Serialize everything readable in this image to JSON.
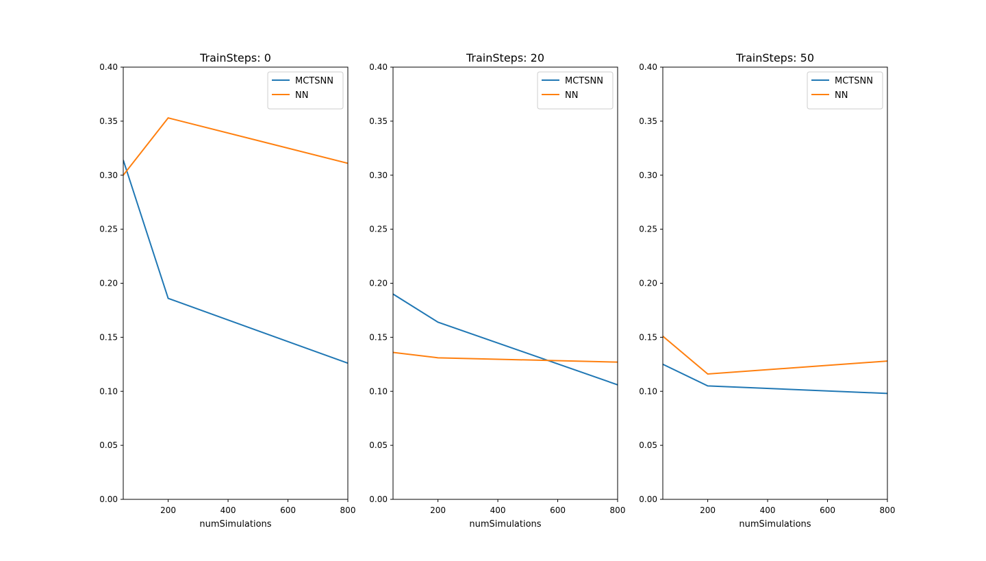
{
  "colors": {
    "MCTSNN": "#1f77b4",
    "NN": "#ff7f0e"
  },
  "chart_data": [
    {
      "type": "line",
      "title": "TrainSteps: 0",
      "xlabel": "numSimulations",
      "ylabel": "",
      "x": [
        50,
        200,
        800
      ],
      "xlim": [
        50,
        800
      ],
      "ylim": [
        0,
        0.4
      ],
      "xticks": [
        "200",
        "400",
        "600",
        "800"
      ],
      "yticks": [
        "0.00",
        "0.05",
        "0.10",
        "0.15",
        "0.20",
        "0.25",
        "0.30",
        "0.35",
        "0.40"
      ],
      "legend_position": "top-right",
      "grid": false,
      "series": [
        {
          "name": "MCTSNN",
          "values": [
            0.314,
            0.186,
            0.126
          ]
        },
        {
          "name": "NN",
          "values": [
            0.3,
            0.353,
            0.311
          ]
        }
      ]
    },
    {
      "type": "line",
      "title": "TrainSteps: 20",
      "xlabel": "numSimulations",
      "ylabel": "",
      "x": [
        50,
        200,
        800
      ],
      "xlim": [
        50,
        800
      ],
      "ylim": [
        0,
        0.4
      ],
      "xticks": [
        "200",
        "400",
        "600",
        "800"
      ],
      "yticks": [
        "0.00",
        "0.05",
        "0.10",
        "0.15",
        "0.20",
        "0.25",
        "0.30",
        "0.35",
        "0.40"
      ],
      "legend_position": "top-right",
      "grid": false,
      "series": [
        {
          "name": "MCTSNN",
          "values": [
            0.19,
            0.164,
            0.106
          ]
        },
        {
          "name": "NN",
          "values": [
            0.136,
            0.131,
            0.127
          ]
        }
      ]
    },
    {
      "type": "line",
      "title": "TrainSteps: 50",
      "xlabel": "numSimulations",
      "ylabel": "",
      "x": [
        50,
        200,
        800
      ],
      "xlim": [
        50,
        800
      ],
      "ylim": [
        0,
        0.4
      ],
      "xticks": [
        "200",
        "400",
        "600",
        "800"
      ],
      "yticks": [
        "0.00",
        "0.05",
        "0.10",
        "0.15",
        "0.20",
        "0.25",
        "0.30",
        "0.35",
        "0.40"
      ],
      "legend_position": "top-right",
      "grid": false,
      "series": [
        {
          "name": "MCTSNN",
          "values": [
            0.125,
            0.105,
            0.098
          ]
        },
        {
          "name": "NN",
          "values": [
            0.151,
            0.116,
            0.128
          ]
        }
      ]
    }
  ]
}
